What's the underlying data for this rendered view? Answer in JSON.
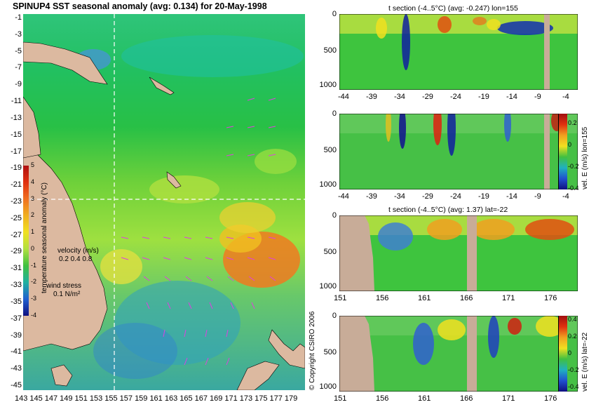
{
  "map": {
    "title": "SPINUP4 SST seasonal anomaly  (avg: 0.134) for 20-May-1998",
    "lat_labels": [
      "-1",
      "-3",
      "-5",
      "-7",
      "-9",
      "-11",
      "-13",
      "-15",
      "-17",
      "-19",
      "-21",
      "-23",
      "-25",
      "-27",
      "-29",
      "-31",
      "-33",
      "-35",
      "-37",
      "-39",
      "-41",
      "-43",
      "-45"
    ],
    "lon_labels": [
      "143",
      "145",
      "147",
      "149",
      "151",
      "153",
      "155",
      "157",
      "159",
      "161",
      "163",
      "165",
      "167",
      "169",
      "171",
      "173",
      "175",
      "177",
      "179"
    ],
    "colorbar": {
      "label": "temperature seasonal anomaly (°C)",
      "ticks": [
        "5",
        "4",
        "3",
        "2",
        "1",
        "0",
        "-1",
        "-2",
        "-3",
        "-4"
      ],
      "range": [
        -4,
        5
      ]
    },
    "velocity_legend": {
      "label": "velocity (m/s)",
      "scale": "0.2 0.4 0.8"
    },
    "wind_legend": {
      "label": "wind stress",
      "scale": "0.1 N/m²"
    },
    "copyright": "© Copyright CSIRO 2006",
    "section_lines": {
      "lon": 155,
      "lat": -22
    }
  },
  "panels": [
    {
      "title": "t section (-4..5°C)  (avg: -0.247) lon=155",
      "depth_ticks": [
        "0",
        "500",
        "1000"
      ],
      "x_ticks": [
        "-44",
        "-39",
        "-34",
        "-29",
        "-24",
        "-19",
        "-14",
        "-9",
        "-4"
      ]
    },
    {
      "title": "",
      "depth_ticks": [
        "0",
        "500",
        "1000"
      ],
      "x_ticks": [
        "-44",
        "-39",
        "-34",
        "-29",
        "-24",
        "-19",
        "-14",
        "-9",
        "-4"
      ],
      "colorbar": {
        "ticks": [
          "0.2",
          "0",
          "-0.2",
          "-0.4"
        ],
        "label": "vel. E (m/s) lon=155"
      }
    },
    {
      "title": "t section (-4..5°C)  (avg: 1.37) lat=-22",
      "depth_ticks": [
        "0",
        "500",
        "1000"
      ],
      "x_ticks": [
        "151",
        "156",
        "161",
        "166",
        "171",
        "176"
      ]
    },
    {
      "title": "",
      "depth_ticks": [
        "0",
        "500",
        "1000"
      ],
      "x_ticks": [
        "151",
        "156",
        "161",
        "166",
        "171",
        "176"
      ],
      "colorbar": {
        "ticks": [
          "0.4",
          "0.2",
          "0",
          "-0.2",
          "-0.4"
        ],
        "label": "vel. E (m/s) lat=-22"
      }
    }
  ],
  "colors": {
    "land": "#dcb9a0",
    "section_land": "#c8ac98",
    "ocean_green": "#2ec43a",
    "dashed_line": "#ffffff",
    "wind_arrow": "#e040e0"
  }
}
